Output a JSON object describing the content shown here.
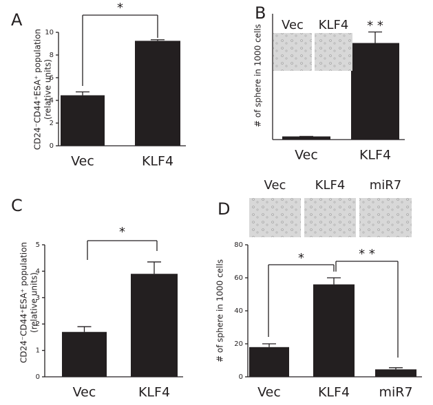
{
  "chart_data": [
    {
      "type": "bar",
      "panel": "A",
      "ylabel": [
        "CD24⁻CD44⁺ESA⁺ population",
        "(relative units)"
      ],
      "categories": [
        "Vec",
        "KLF4"
      ],
      "values": [
        4.45,
        9.25
      ],
      "errors": [
        0.3,
        0.1
      ],
      "color": "#231f20",
      "ylim": [
        0,
        10
      ],
      "yticks": [
        0,
        2,
        4,
        6,
        8,
        10
      ],
      "annotations": [
        "*"
      ]
    },
    {
      "type": "bar",
      "panel": "B",
      "ylabel": [
        "# of sphere in 1000 cells"
      ],
      "categories": [
        "Vec",
        "KLF4"
      ],
      "values": [
        1,
        30.7
      ],
      "errors": [
        0,
        3.5
      ],
      "color": "#231f20",
      "ylim": [
        0,
        40
      ],
      "inset_labels": [
        "Vec",
        "KLF4"
      ],
      "annotations": [
        "* *"
      ]
    },
    {
      "type": "bar",
      "panel": "C",
      "ylabel": [
        "CD24⁻CD44⁺ESA⁺ population",
        "(relative units)"
      ],
      "categories": [
        "Vec",
        "KLF4"
      ],
      "values": [
        1.7,
        3.9
      ],
      "errors": [
        0.2,
        0.45
      ],
      "color": "#231f20",
      "ylim": [
        0,
        5
      ],
      "yticks": [
        0,
        1,
        2,
        3,
        4,
        5
      ],
      "annotations": [
        "*"
      ]
    },
    {
      "type": "bar",
      "panel": "D",
      "ylabel": [
        "# of sphere in 1000 cells"
      ],
      "categories": [
        "Vec",
        "KLF4",
        "miR7"
      ],
      "values": [
        18,
        56,
        4.5
      ],
      "errors": [
        2,
        4,
        1
      ],
      "color": "#231f20",
      "ylim": [
        0,
        80
      ],
      "yticks": [
        0,
        20,
        40,
        60,
        80
      ],
      "inset_labels": [
        "Vec",
        "KLF4",
        "miR7"
      ],
      "annotations": [
        "*",
        "* *"
      ]
    }
  ]
}
